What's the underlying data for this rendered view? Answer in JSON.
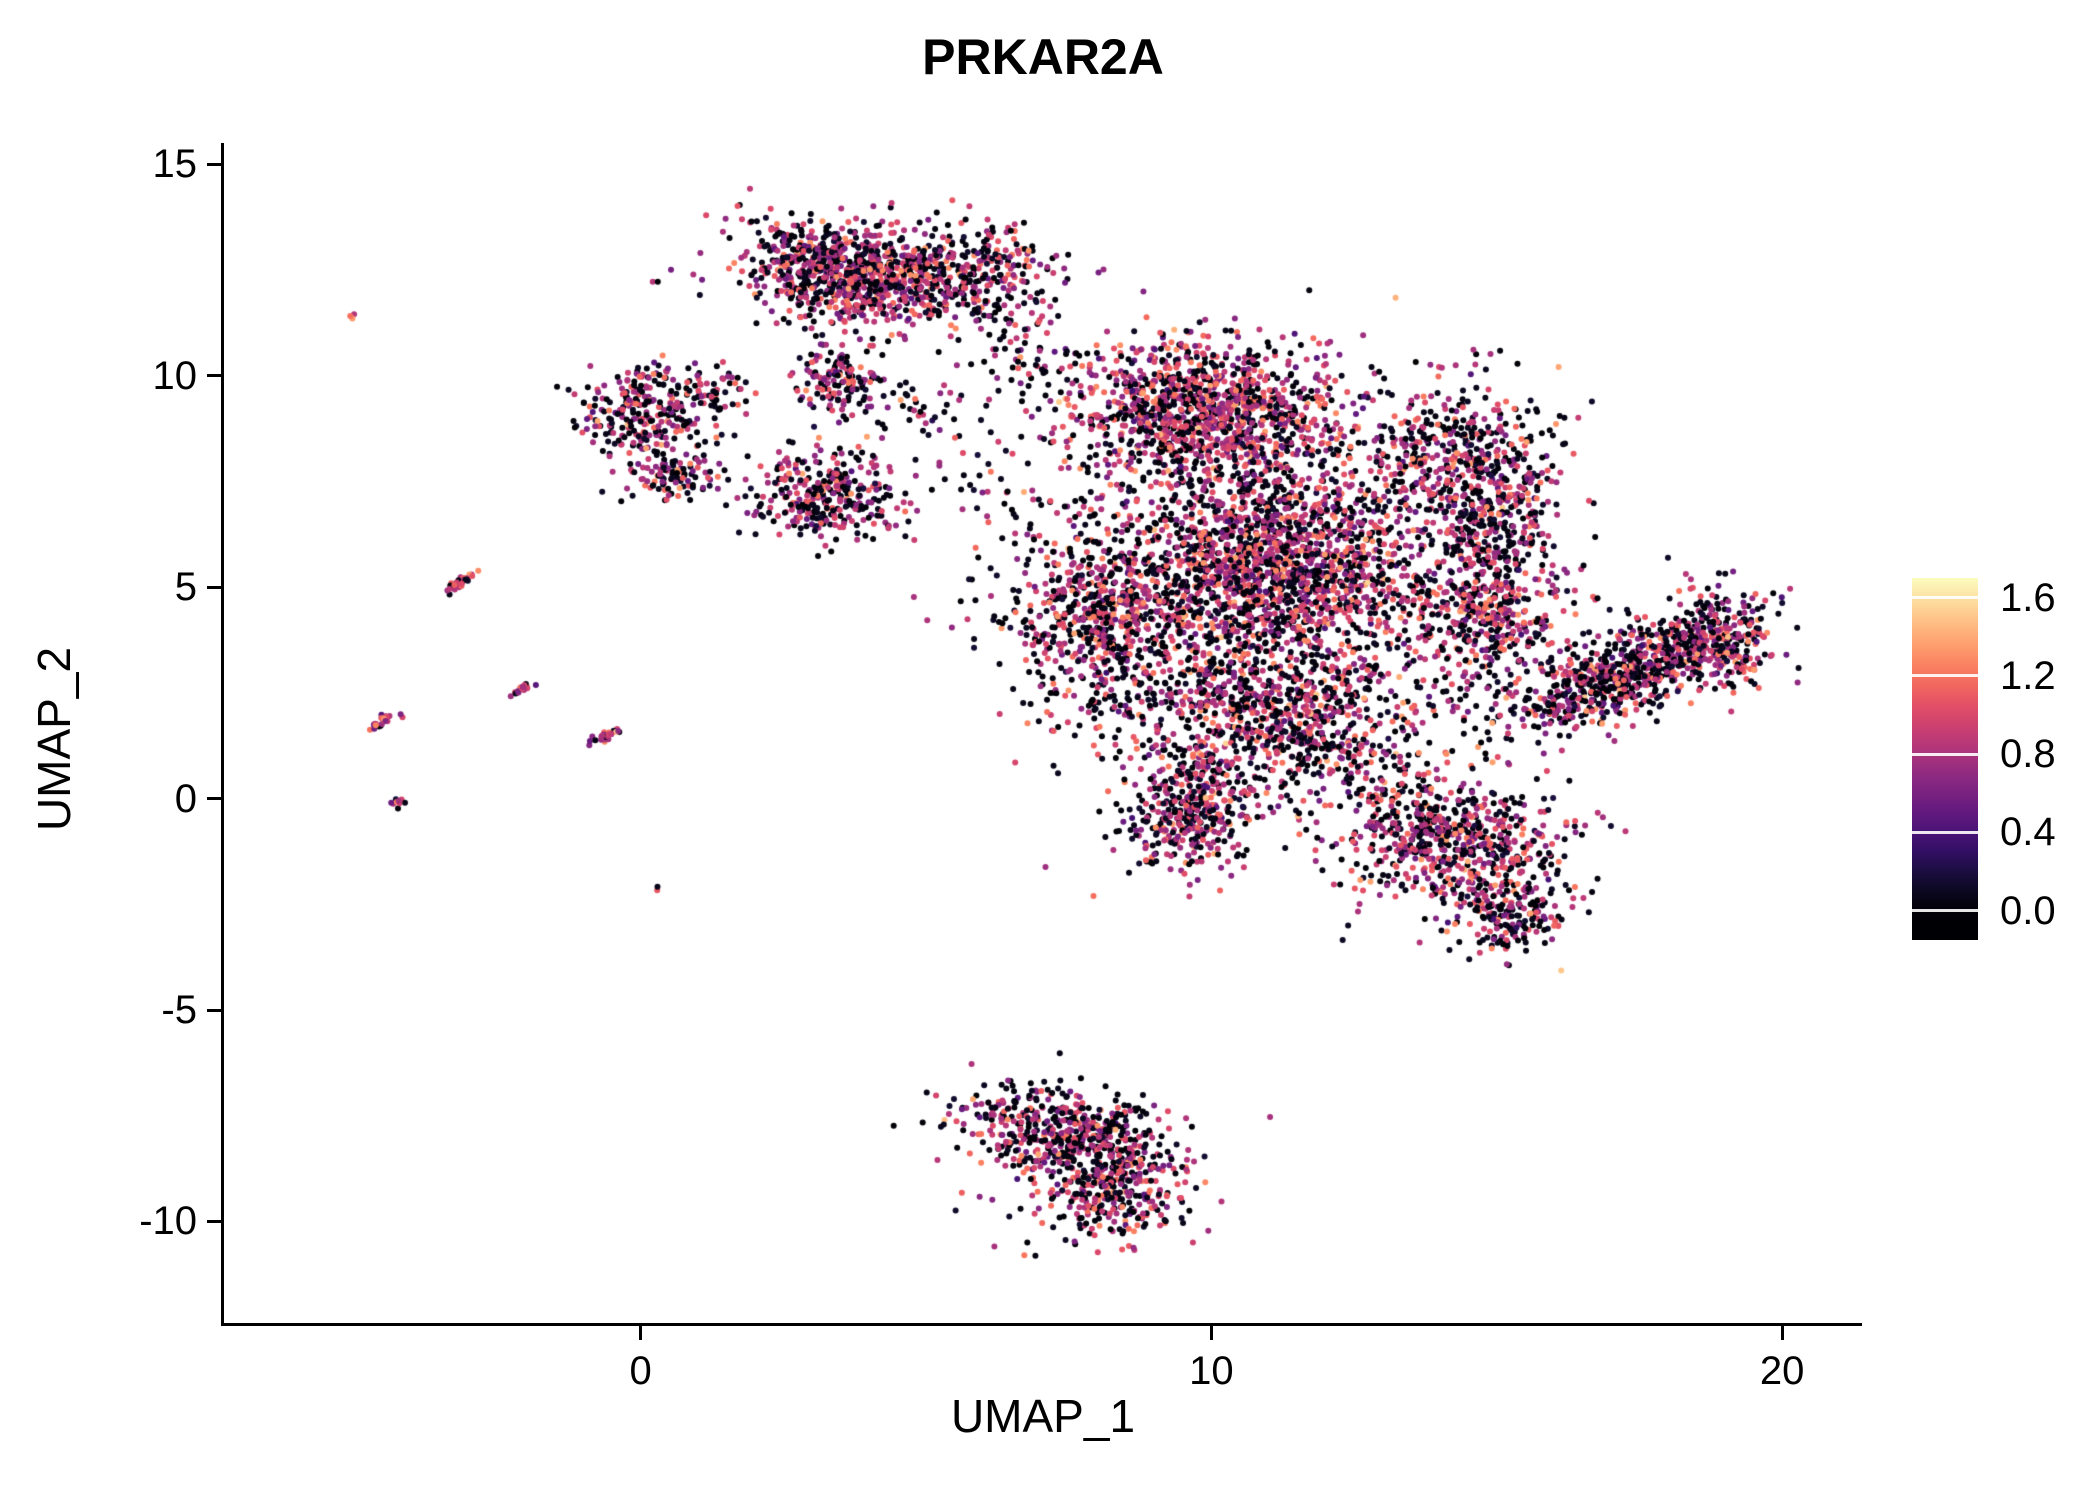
{
  "colors": {
    "background": "#ffffff",
    "axis": "#000000",
    "text": "#000000"
  },
  "chart_data": {
    "type": "scatter",
    "title": "PRKAR2A",
    "xlabel": "UMAP_1",
    "ylabel": "UMAP_2",
    "xlim": [
      -7.3,
      21.4
    ],
    "ylim": [
      -12.4,
      15.5
    ],
    "xticks": [
      0,
      10,
      20
    ],
    "xtick_labels": [
      "0",
      "10",
      "20"
    ],
    "yticks": [
      -10,
      -5,
      0,
      5,
      10,
      15
    ],
    "ytick_labels": [
      "-10",
      "-5",
      "0",
      "5",
      "10",
      "15"
    ],
    "grid": false,
    "legend_position": "right",
    "point_radius_px": 3.0,
    "seed": 7,
    "colormap_name": "magma",
    "colormap": [
      {
        "t": 0.0,
        "c": "#000004"
      },
      {
        "t": 0.1,
        "c": "#140e36"
      },
      {
        "t": 0.2,
        "c": "#3b0f70"
      },
      {
        "t": 0.3,
        "c": "#641a80"
      },
      {
        "t": 0.4,
        "c": "#8c2981"
      },
      {
        "t": 0.5,
        "c": "#b73779"
      },
      {
        "t": 0.6,
        "c": "#de4968"
      },
      {
        "t": 0.7,
        "c": "#f7705c"
      },
      {
        "t": 0.8,
        "c": "#fe9f6d"
      },
      {
        "t": 0.9,
        "c": "#fece91"
      },
      {
        "t": 1.0,
        "c": "#fcfdbf"
      }
    ],
    "colorbar": {
      "ticks": [
        0.0,
        0.4,
        0.8,
        1.2,
        1.6
      ],
      "tick_labels": [
        "0.0",
        "0.4",
        "0.8",
        "1.2",
        "1.6"
      ],
      "bar_range": [
        -0.15,
        1.7
      ],
      "value_max": 1.7
    },
    "expression_levels": {
      "low": {
        "mean": 0.0,
        "sd": 0.07
      },
      "mid": {
        "mean": 0.8,
        "sd": 0.16
      },
      "high": {
        "mean": 1.15,
        "sd": 0.14
      }
    },
    "default_mix": [
      0.45,
      0.4,
      0.15
    ],
    "clusters": [
      {
        "name": "top-cluster-core",
        "cx": 3.8,
        "cy": 12.4,
        "sx": 1.05,
        "sy": 0.62,
        "rot": -8,
        "n": 900
      },
      {
        "name": "top-cluster-right",
        "cx": 5.9,
        "cy": 12.5,
        "sx": 0.75,
        "sy": 0.55,
        "rot": 0,
        "n": 220
      },
      {
        "name": "top-right-trail",
        "cx": 6.7,
        "cy": 10.8,
        "sx": 0.55,
        "sy": 0.85,
        "rot": 0,
        "n": 70,
        "mix": [
          0.55,
          0.33,
          0.12
        ]
      },
      {
        "name": "stream-below-top",
        "cx": 3.5,
        "cy": 9.8,
        "sx": 0.38,
        "sy": 0.5,
        "rot": 10,
        "n": 150
      },
      {
        "name": "stream-right-sparse",
        "cx": 4.8,
        "cy": 9.3,
        "sx": 0.55,
        "sy": 0.45,
        "rot": 0,
        "n": 40,
        "mix": [
          0.55,
          0.33,
          0.12
        ]
      },
      {
        "name": "left-blob",
        "cx": 0.2,
        "cy": 9.1,
        "sx": 0.58,
        "sy": 0.55,
        "rot": 0,
        "n": 280
      },
      {
        "name": "left-blob-east",
        "cx": 1.3,
        "cy": 9.7,
        "sx": 0.35,
        "sy": 0.3,
        "rot": 0,
        "n": 45
      },
      {
        "name": "left-small-blob",
        "cx": 0.5,
        "cy": 7.6,
        "sx": 0.42,
        "sy": 0.3,
        "rot": 0,
        "n": 100
      },
      {
        "name": "mid-blob",
        "cx": 3.3,
        "cy": 7.2,
        "sx": 0.62,
        "sy": 0.55,
        "rot": 0,
        "n": 320
      },
      {
        "name": "mid-sparse-bridge",
        "cx": 6.3,
        "cy": 7.3,
        "sx": 0.6,
        "sy": 0.7,
        "rot": 0,
        "n": 35,
        "mix": [
          0.55,
          0.33,
          0.12
        ]
      },
      {
        "name": "main-upper-band",
        "cx": 9.8,
        "cy": 9.2,
        "sx": 1.2,
        "sy": 0.8,
        "rot": -10,
        "n": 1150,
        "mix": [
          0.35,
          0.42,
          0.23
        ]
      },
      {
        "name": "main-right-bump",
        "cx": 14.3,
        "cy": 8.0,
        "sx": 0.8,
        "sy": 0.95,
        "rot": 0,
        "n": 430
      },
      {
        "name": "main-core",
        "cx": 11.2,
        "cy": 5.6,
        "sx": 1.3,
        "sy": 1.15,
        "rot": 0,
        "n": 1600,
        "mix": [
          0.38,
          0.42,
          0.2
        ]
      },
      {
        "name": "main-left-lobe",
        "cx": 8.2,
        "cy": 4.3,
        "sx": 0.9,
        "sy": 1.15,
        "rot": 0,
        "n": 700
      },
      {
        "name": "main-lower-band",
        "cx": 11.2,
        "cy": 1.9,
        "sx": 1.3,
        "sy": 0.9,
        "rot": 0,
        "n": 800
      },
      {
        "name": "main-lower-left-lobe",
        "cx": 9.6,
        "cy": -0.4,
        "sx": 0.55,
        "sy": 0.75,
        "rot": 0,
        "n": 360
      },
      {
        "name": "main-right-mid",
        "cx": 14.8,
        "cy": 4.3,
        "sx": 0.7,
        "sy": 0.85,
        "rot": 0,
        "n": 380
      },
      {
        "name": "main-right-column",
        "cx": 15.0,
        "cy": 6.4,
        "sx": 0.5,
        "sy": 0.9,
        "rot": 0,
        "n": 230
      },
      {
        "name": "main-sparse-halo",
        "cx": 11.0,
        "cy": 5.0,
        "sx": 2.3,
        "sy": 2.6,
        "rot": 0,
        "n": 550,
        "mix": [
          0.55,
          0.33,
          0.12
        ]
      },
      {
        "name": "right-wing",
        "cx": 17.3,
        "cy": 3.0,
        "sx": 1.15,
        "sy": 0.45,
        "rot": 27,
        "n": 780,
        "mix": [
          0.5,
          0.38,
          0.12
        ]
      },
      {
        "name": "right-wing-tip",
        "cx": 19.0,
        "cy": 3.9,
        "sx": 0.4,
        "sy": 0.6,
        "rot": 20,
        "n": 170
      },
      {
        "name": "lower-right-blob",
        "cx": 14.2,
        "cy": -1.0,
        "sx": 1.05,
        "sy": 0.8,
        "rot": -15,
        "n": 680
      },
      {
        "name": "lower-right-tail",
        "cx": 15.2,
        "cy": -2.8,
        "sx": 0.45,
        "sy": 0.5,
        "rot": -30,
        "n": 170
      },
      {
        "name": "bottom-cluster-band",
        "cx": 7.4,
        "cy": -7.9,
        "sx": 0.95,
        "sy": 0.5,
        "rot": -15,
        "n": 430
      },
      {
        "name": "bottom-cluster-tip",
        "cx": 8.3,
        "cy": -9.2,
        "sx": 0.6,
        "sy": 0.55,
        "rot": -35,
        "n": 270
      },
      {
        "name": "bottom-cluster-halo",
        "cx": 7.8,
        "cy": -8.5,
        "sx": 1.1,
        "sy": 0.85,
        "rot": -20,
        "n": 150,
        "mix": [
          0.5,
          0.37,
          0.13
        ]
      },
      {
        "name": "left-streak-1",
        "cx": -3.2,
        "cy": 5.1,
        "sx": 0.2,
        "sy": 0.05,
        "rot": 40,
        "n": 32,
        "mix": [
          0.15,
          0.5,
          0.35
        ]
      },
      {
        "name": "left-streak-2",
        "cx": -2.05,
        "cy": 2.6,
        "sx": 0.13,
        "sy": 0.05,
        "rot": 35,
        "n": 18,
        "mix": [
          0.2,
          0.55,
          0.25
        ]
      },
      {
        "name": "left-streak-3",
        "cx": -4.5,
        "cy": 1.85,
        "sx": 0.16,
        "sy": 0.05,
        "rot": 35,
        "n": 22,
        "mix": [
          0.2,
          0.55,
          0.25
        ]
      },
      {
        "name": "left-streak-4",
        "cx": -0.6,
        "cy": 1.5,
        "sx": 0.16,
        "sy": 0.05,
        "rot": 30,
        "n": 26,
        "mix": [
          0.25,
          0.55,
          0.2
        ]
      },
      {
        "name": "left-dot-group",
        "cx": -4.25,
        "cy": -0.1,
        "sx": 0.08,
        "sy": 0.05,
        "rot": 30,
        "n": 12,
        "mix": [
          0.3,
          0.5,
          0.2
        ]
      },
      {
        "name": "lone-dot-low",
        "cx": 0.3,
        "cy": -2.1,
        "sx": 0.04,
        "sy": 0.04,
        "rot": 0,
        "n": 2,
        "mix": [
          0.2,
          0.6,
          0.2
        ]
      },
      {
        "name": "lone-dot-high",
        "cx": -5.05,
        "cy": 11.4,
        "sx": 0.05,
        "sy": 0.06,
        "rot": 0,
        "n": 3,
        "mix": [
          0.2,
          0.5,
          0.3
        ]
      }
    ]
  }
}
